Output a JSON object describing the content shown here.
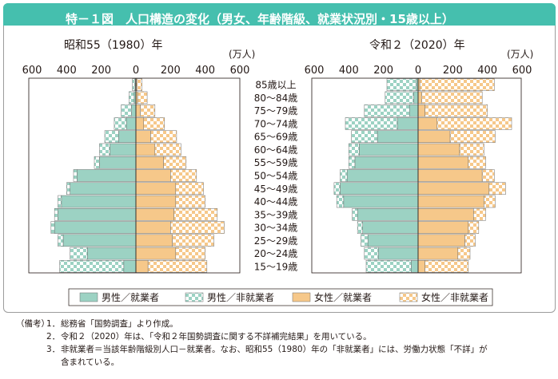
{
  "title": "特－１図　人口構造の変化（男女、年齢階級、就業状況別・15歳以上）",
  "legend": [
    {
      "key": "male_emp",
      "label": "男性／就業者"
    },
    {
      "key": "male_non",
      "label": "男性／非就業者"
    },
    {
      "key": "fem_emp",
      "label": "女性／就業者"
    },
    {
      "key": "fem_non",
      "label": "女性／非就業者"
    }
  ],
  "colors": {
    "male_emp": "#9cd2c3",
    "male_non_a": "#9cd2c3",
    "male_non_b": "#ffffff",
    "fem_emp": "#f6c88a",
    "fem_non_a": "#f6c88a",
    "fem_non_b": "#ffffff",
    "title_bar": "#45bfae",
    "outline": "#231815"
  },
  "notes": {
    "header": "（備考）",
    "items": [
      {
        "no": "1．",
        "text": "総務省「国勢調査」より作成。"
      },
      {
        "no": "2．",
        "text": "令和２（2020）年は、「令和２年国勢調査に関する不詳補完結果」を用いている。"
      },
      {
        "no": "3．",
        "text": "非就業者＝当該年齢階級別人口－就業者。なお、昭和55（1980）年の「非就業者」には、労働力状態「不詳」が"
      }
    ],
    "continuation": "含まれている。"
  },
  "chart_data": {
    "type": "bar",
    "unit": "(万人)",
    "xlim": [
      -600,
      600
    ],
    "xticks": [
      "600",
      "400",
      "200",
      "0",
      "200",
      "400",
      "600"
    ],
    "categories": [
      "85歳以上",
      "80～84歳",
      "75～79歳",
      "70～74歳",
      "65～69歳",
      "60～64歳",
      "55～59歳",
      "50～54歳",
      "45～49歳",
      "40～44歳",
      "35～39歳",
      "30～34歳",
      "25～29歳",
      "20～24歳",
      "15～19歳"
    ],
    "panels": [
      {
        "title": "昭和55（1980）年",
        "series": [
          {
            "name": "男性／就業者",
            "values": [
              5,
              10,
              25,
              55,
              100,
              150,
              210,
              340,
              380,
              430,
              450,
              470,
              420,
              280,
              70
            ]
          },
          {
            "name": "男性／非就業者",
            "values": [
              15,
              30,
              60,
              70,
              80,
              60,
              30,
              20,
              20,
              20,
              20,
              20,
              30,
              100,
              370
            ]
          },
          {
            "name": "女性／就業者",
            "values": [
              5,
              10,
              25,
              45,
              85,
              110,
              160,
              200,
              230,
              230,
              220,
              200,
              210,
              230,
              70
            ]
          },
          {
            "name": "女性／非就業者",
            "values": [
              30,
              55,
              85,
              120,
              150,
              150,
              130,
              150,
              160,
              170,
              250,
              310,
              240,
              170,
              340
            ]
          }
        ]
      },
      {
        "title": "令和２（2020）年",
        "series": [
          {
            "name": "男性／就業者",
            "values": [
              10,
              25,
              50,
              120,
              235,
              340,
              365,
              410,
              450,
              430,
              350,
              320,
              290,
              230,
              40
            ]
          },
          {
            "name": "男性／非就業者",
            "values": [
              170,
              165,
              260,
              300,
              150,
              60,
              35,
              40,
              35,
              40,
              30,
              30,
              40,
              80,
              260
            ]
          },
          {
            "name": "女性／就業者",
            "values": [
              10,
              20,
              40,
              110,
              185,
              240,
              290,
              370,
              410,
              380,
              320,
              290,
              270,
              230,
              40
            ]
          },
          {
            "name": "女性／非就業者",
            "values": [
              430,
              350,
              360,
              430,
              260,
              140,
              100,
              70,
              95,
              65,
              70,
              60,
              60,
              70,
              250
            ]
          }
        ]
      }
    ]
  }
}
